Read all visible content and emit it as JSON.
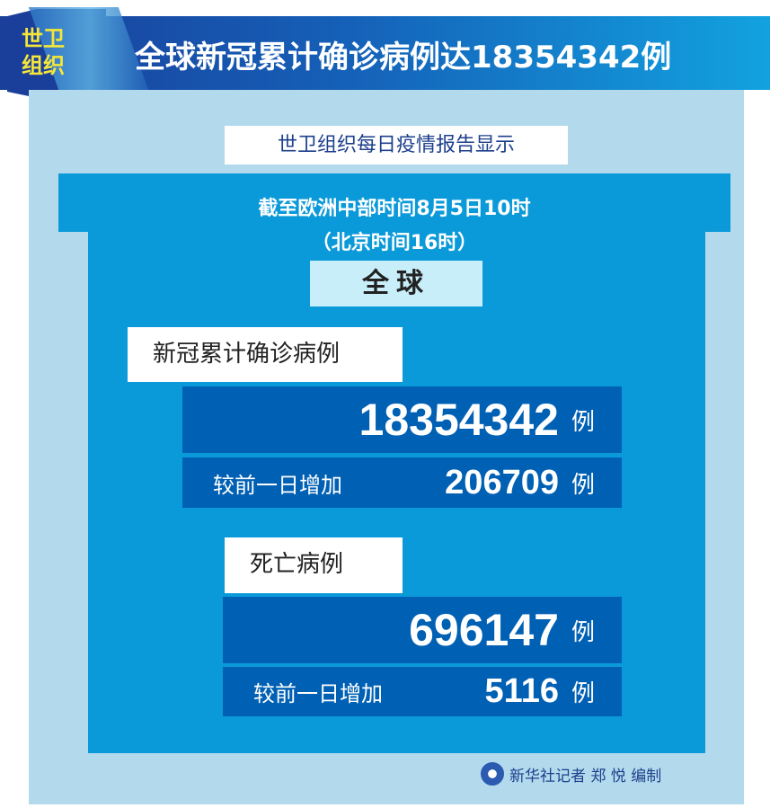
{
  "header": {
    "badge": "世卫组织",
    "title": "全球新冠累计确诊病例达18354342例"
  },
  "subtitle": "世卫组织每日疫情报告显示",
  "time": {
    "line1": "截至欧洲中部时间8月5日10时",
    "line2": "（北京时间16时）"
  },
  "scope": "全球",
  "cases": {
    "label": "新冠累计确诊病例",
    "total": "18354342",
    "unit": "例",
    "increase_label": "较前一日增加",
    "increase": "206709"
  },
  "deaths": {
    "label": "死亡病例",
    "total": "696147",
    "unit": "例",
    "increase_label": "较前一日增加",
    "increase": "5116"
  },
  "credit": {
    "logo": "xinhua-logo",
    "text": "新华社记者 郑 悦 编制"
  },
  "colors": {
    "header": "#1a3f9a",
    "panel": "#0b9ad9",
    "box": "#0060b4",
    "badge_text": "#f5e63a"
  }
}
